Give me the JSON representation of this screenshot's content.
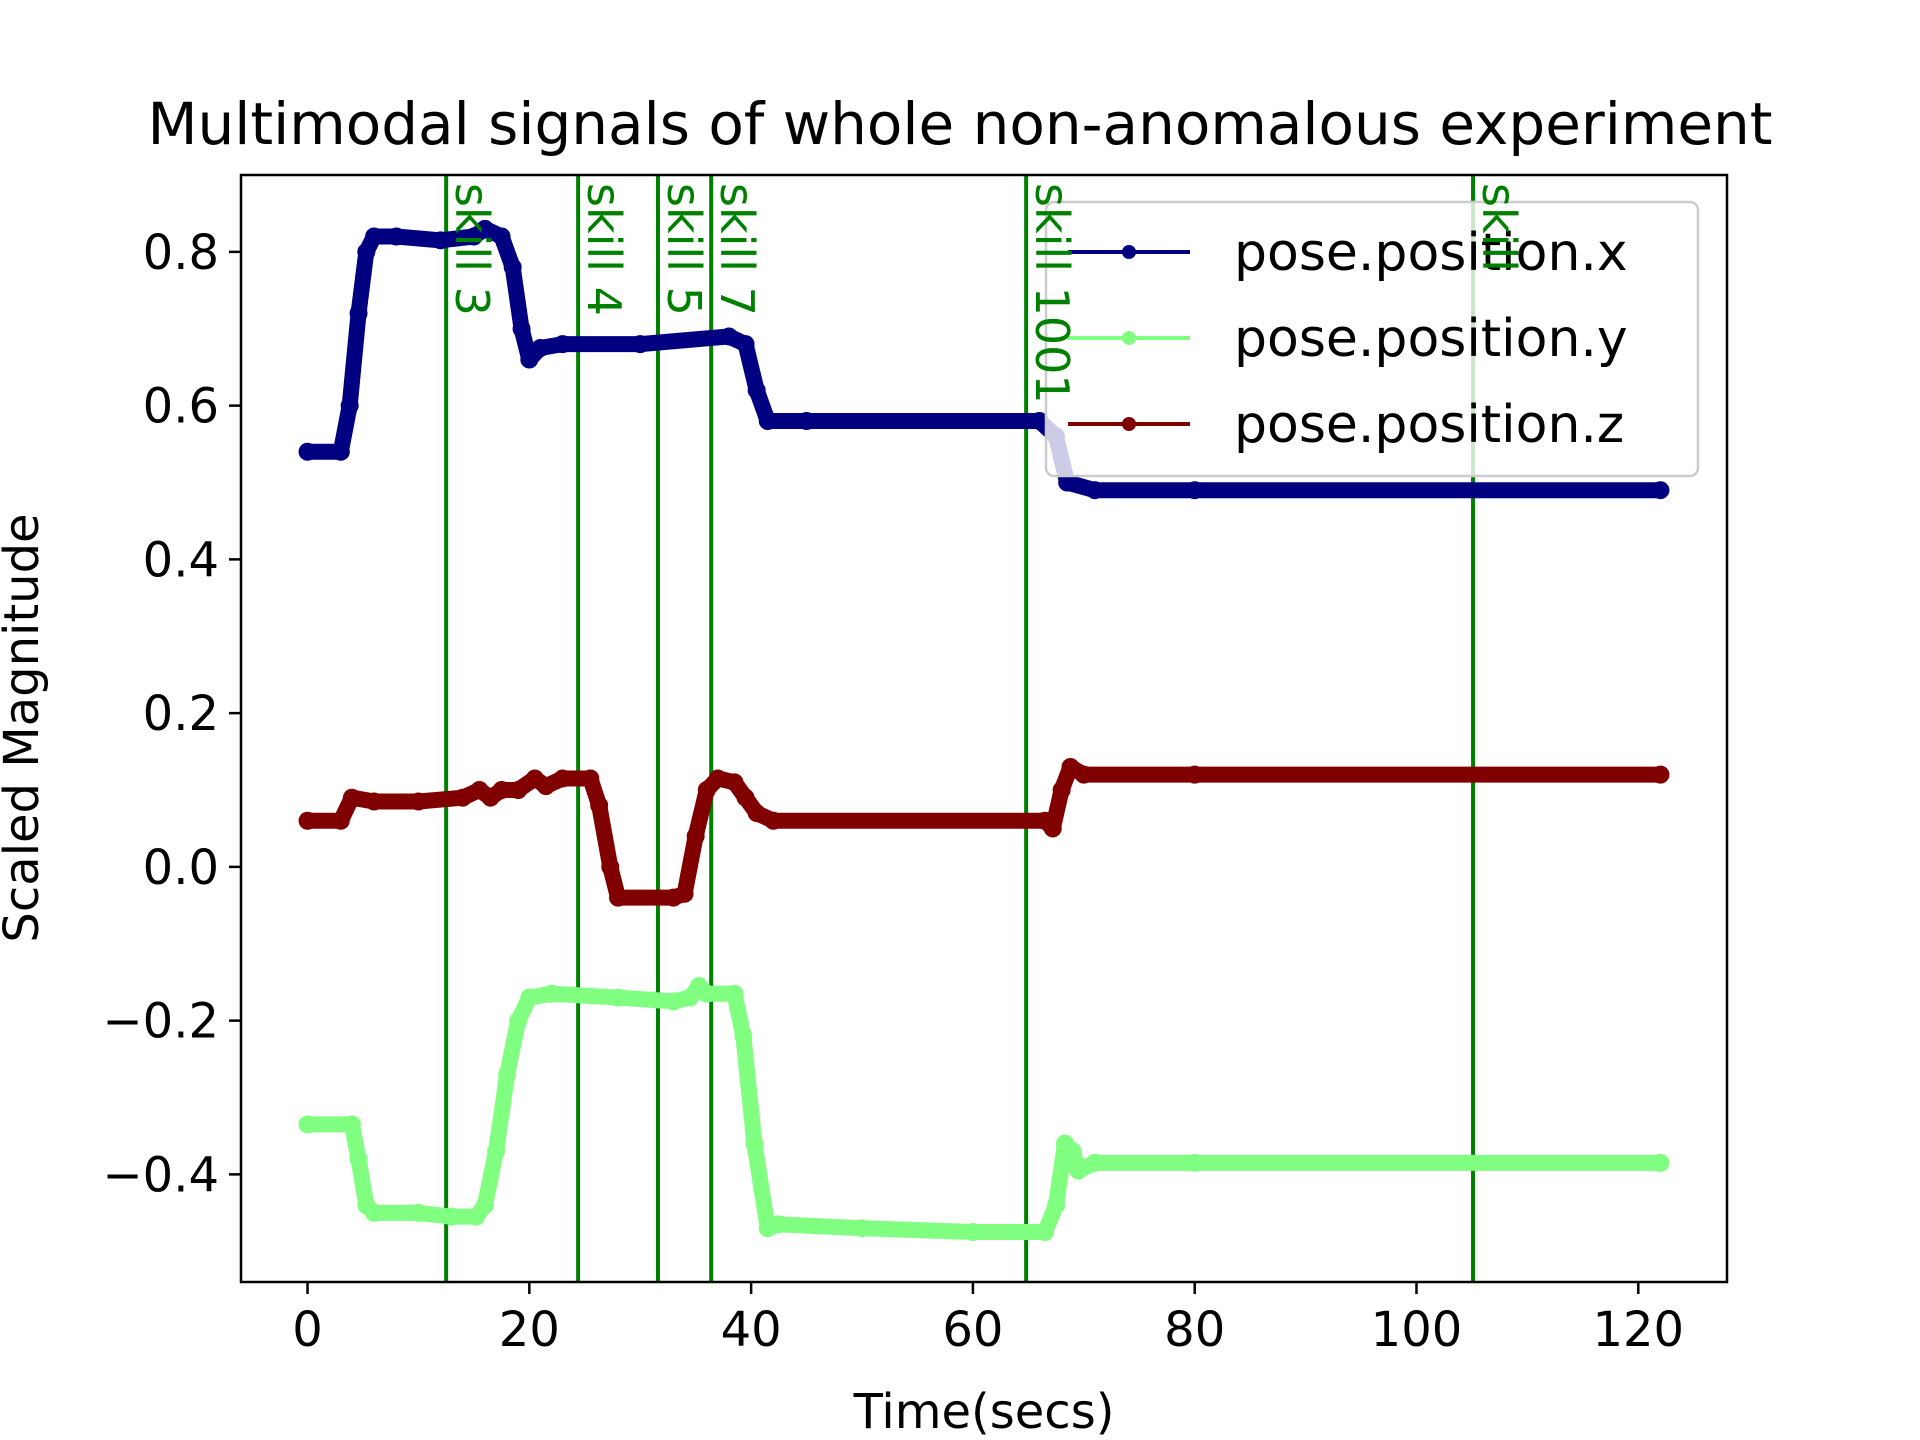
{
  "chart_data": {
    "type": "line",
    "title": "Multimodal signals of whole non-anomalous experiment",
    "xlabel": "Time(secs)",
    "ylabel": "Scaled Magnitude",
    "xlim": [
      -6,
      128
    ],
    "ylim": [
      -0.54,
      0.9
    ],
    "xticks": [
      0,
      20,
      40,
      60,
      80,
      100,
      120
    ],
    "xtick_labels": [
      "0",
      "20",
      "40",
      "60",
      "80",
      "100",
      "120"
    ],
    "yticks": [
      -0.4,
      -0.2,
      0.0,
      0.2,
      0.4,
      0.6,
      0.8
    ],
    "ytick_labels": [
      "−0.4",
      "−0.2",
      "0.0",
      "0.2",
      "0.4",
      "0.6",
      "0.8"
    ],
    "grid": false,
    "legend_position": "top-right",
    "series": [
      {
        "name": "pose.position.x",
        "color": "#000080",
        "points": [
          [
            0,
            0.54
          ],
          [
            3,
            0.54
          ],
          [
            3.8,
            0.6
          ],
          [
            4.6,
            0.72
          ],
          [
            5.3,
            0.8
          ],
          [
            6,
            0.82
          ],
          [
            8,
            0.82
          ],
          [
            12,
            0.815
          ],
          [
            15,
            0.82
          ],
          [
            16,
            0.83
          ],
          [
            17.5,
            0.82
          ],
          [
            18.5,
            0.78
          ],
          [
            19.3,
            0.7
          ],
          [
            20,
            0.66
          ],
          [
            21,
            0.675
          ],
          [
            23,
            0.68
          ],
          [
            30,
            0.68
          ],
          [
            38,
            0.69
          ],
          [
            39.5,
            0.68
          ],
          [
            40.5,
            0.62
          ],
          [
            41.5,
            0.58
          ],
          [
            45,
            0.58
          ],
          [
            66,
            0.58
          ],
          [
            67.5,
            0.56
          ],
          [
            68.5,
            0.5
          ],
          [
            71,
            0.49
          ],
          [
            80,
            0.49
          ],
          [
            122,
            0.49
          ]
        ]
      },
      {
        "name": "pose.position.y",
        "color": "#80ff80",
        "points": [
          [
            0,
            -0.335
          ],
          [
            4,
            -0.335
          ],
          [
            4.6,
            -0.38
          ],
          [
            5.3,
            -0.44
          ],
          [
            6,
            -0.45
          ],
          [
            10,
            -0.45
          ],
          [
            13,
            -0.455
          ],
          [
            15.2,
            -0.455
          ],
          [
            16,
            -0.44
          ],
          [
            17,
            -0.37
          ],
          [
            18,
            -0.27
          ],
          [
            19,
            -0.2
          ],
          [
            20,
            -0.17
          ],
          [
            22,
            -0.165
          ],
          [
            28,
            -0.17
          ],
          [
            33,
            -0.175
          ],
          [
            34.5,
            -0.17
          ],
          [
            35.3,
            -0.155
          ],
          [
            36,
            -0.165
          ],
          [
            38.5,
            -0.165
          ],
          [
            39.3,
            -0.22
          ],
          [
            40.3,
            -0.36
          ],
          [
            41.5,
            -0.47
          ],
          [
            42.5,
            -0.465
          ],
          [
            50,
            -0.47
          ],
          [
            60,
            -0.475
          ],
          [
            66.5,
            -0.475
          ],
          [
            67.5,
            -0.44
          ],
          [
            68.3,
            -0.36
          ],
          [
            69,
            -0.37
          ],
          [
            69.5,
            -0.395
          ],
          [
            71,
            -0.385
          ],
          [
            80,
            -0.385
          ],
          [
            122,
            -0.385
          ]
        ]
      },
      {
        "name": "pose.position.z",
        "color": "#800000",
        "points": [
          [
            0,
            0.06
          ],
          [
            3,
            0.06
          ],
          [
            4,
            0.09
          ],
          [
            6,
            0.085
          ],
          [
            10,
            0.085
          ],
          [
            14,
            0.09
          ],
          [
            15.5,
            0.1
          ],
          [
            16.5,
            0.09
          ],
          [
            17.5,
            0.1
          ],
          [
            19,
            0.1
          ],
          [
            20.5,
            0.115
          ],
          [
            21.5,
            0.105
          ],
          [
            23,
            0.115
          ],
          [
            25.5,
            0.115
          ],
          [
            26.3,
            0.08
          ],
          [
            27.3,
            0.0
          ],
          [
            28,
            -0.04
          ],
          [
            33,
            -0.04
          ],
          [
            34,
            -0.035
          ],
          [
            35,
            0.04
          ],
          [
            36,
            0.1
          ],
          [
            37,
            0.115
          ],
          [
            38.5,
            0.11
          ],
          [
            39.5,
            0.09
          ],
          [
            40.5,
            0.07
          ],
          [
            42,
            0.06
          ],
          [
            66.5,
            0.06
          ],
          [
            67.2,
            0.05
          ],
          [
            68,
            0.1
          ],
          [
            68.8,
            0.13
          ],
          [
            70,
            0.12
          ],
          [
            80,
            0.12
          ],
          [
            122,
            0.12
          ]
        ]
      }
    ],
    "markers": [
      {
        "x": 12.5,
        "label": "skill 3"
      },
      {
        "x": 24.4,
        "label": "skill 4"
      },
      {
        "x": 31.6,
        "label": "skill 5"
      },
      {
        "x": 36.4,
        "label": "skill 7"
      },
      {
        "x": 64.8,
        "label": "skill 1001"
      },
      {
        "x": 105.1,
        "label": "skill"
      }
    ],
    "marker_color": "#008000"
  }
}
